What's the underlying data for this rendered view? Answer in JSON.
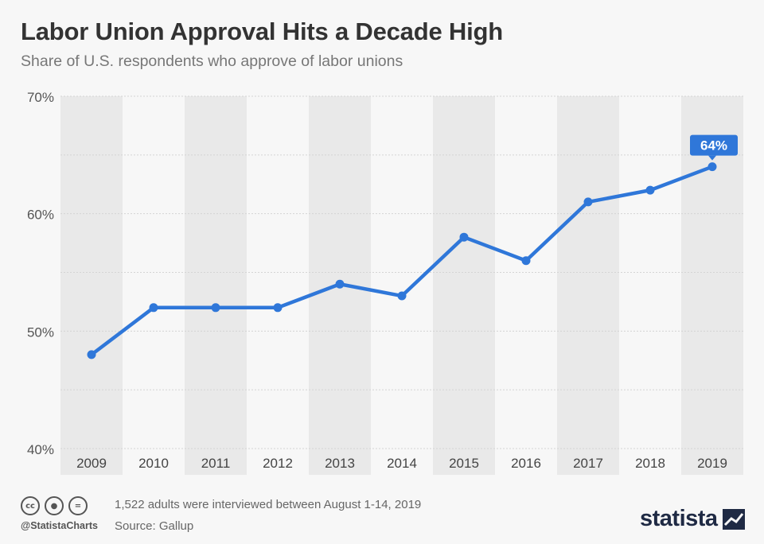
{
  "header": {
    "title": "Labor Union Approval Hits a Decade High",
    "subtitle": "Share of U.S. respondents who approve of labor unions"
  },
  "footer": {
    "note": "1,522 adults were interviewed between August 1-14, 2019",
    "source": "Source: Gallup",
    "handle": "@StatistaCharts",
    "brand": "statista",
    "license_icons": [
      "cc-icon",
      "attribution-icon",
      "no-derivatives-icon"
    ]
  },
  "colors": {
    "line": "#2f77d9",
    "band": "#e9e9e9",
    "background": "#f7f7f7",
    "label_bg": "#2f77d9"
  },
  "chart_data": {
    "type": "line",
    "x": [
      "2009",
      "2010",
      "2011",
      "2012",
      "2013",
      "2014",
      "2015",
      "2016",
      "2017",
      "2018",
      "2019"
    ],
    "series": [
      {
        "values": [
          48,
          52,
          52,
          52,
          54,
          53,
          58,
          56,
          61,
          62,
          64
        ]
      }
    ],
    "ylim": [
      40,
      70
    ],
    "yticks": [
      40,
      50,
      60,
      70
    ],
    "ytick_labels": [
      "40%",
      "50%",
      "60%",
      "70%"
    ],
    "data_labels": [
      {
        "index": 10,
        "text": "64%"
      }
    ],
    "grid": true
  }
}
